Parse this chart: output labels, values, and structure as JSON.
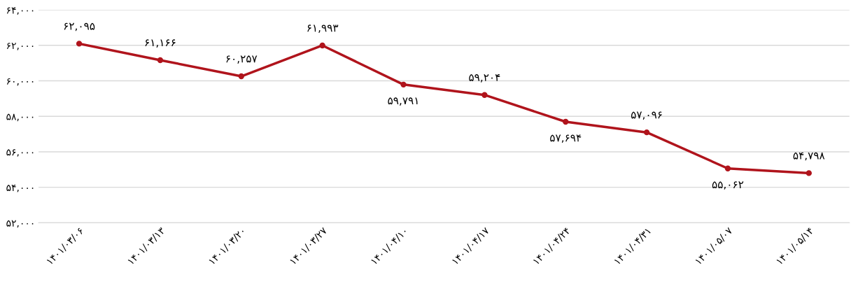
{
  "chart_data": {
    "type": "line",
    "categories": [
      "۱۴۰۱/۰۳/۰۶",
      "۱۴۰۱/۰۳/۱۳",
      "۱۴۰۱/۰۳/۲۰",
      "۱۴۰۱/۰۳/۲۷",
      "۱۴۰۱/۰۴/۱۰",
      "۱۴۰۱/۰۴/۱۷",
      "۱۴۰۱/۰۴/۲۴",
      "۱۴۰۱/۰۴/۳۱",
      "۱۴۰۱/۰۵/۰۷",
      "۱۴۰۱/۰۵/۱۴"
    ],
    "series": [
      {
        "color": "#b0141c",
        "values": [
          62095,
          61166,
          60257,
          61993,
          59791,
          59204,
          57694,
          57096,
          55062,
          54798
        ],
        "value_labels": [
          "۶۲,۰۹۵",
          "۶۱,۱۶۶",
          "۶۰,۲۵۷",
          "۶۱,۹۹۳",
          "۵۹,۷۹۱",
          "۵۹,۲۰۴",
          "۵۷,۶۹۴",
          "۵۷,۰۹۶",
          "۵۵,۰۶۲",
          "۵۴,۷۹۸"
        ]
      }
    ],
    "ylim": [
      52000,
      64000
    ],
    "yticks": [
      {
        "value": 52000,
        "label": "۵۲,۰۰۰"
      },
      {
        "value": 54000,
        "label": "۵۴,۰۰۰"
      },
      {
        "value": 56000,
        "label": "۵۶,۰۰۰"
      },
      {
        "value": 58000,
        "label": "۵۸,۰۰۰"
      },
      {
        "value": 60000,
        "label": "۶۰,۰۰۰"
      },
      {
        "value": 62000,
        "label": "۶۲,۰۰۰"
      },
      {
        "value": 64000,
        "label": "۶۴,۰۰۰"
      }
    ],
    "grid": "y",
    "marker": "circle",
    "line_style": "solid"
  }
}
